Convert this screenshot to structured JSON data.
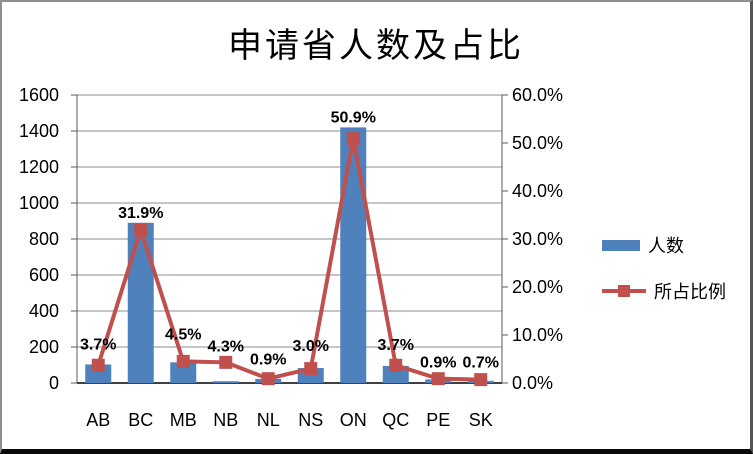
{
  "chart_data": {
    "type": "combo",
    "title": "申请省人数及占比",
    "categories": [
      "AB",
      "BC",
      "MB",
      "NB",
      "NL",
      "NS",
      "ON",
      "QC",
      "PE",
      "SK"
    ],
    "series": [
      {
        "name": "人数",
        "chart_type": "bar",
        "axis": "left",
        "color": "#4F81BD",
        "values": [
          103,
          890,
          115,
          10,
          23,
          83,
          1420,
          95,
          20,
          12
        ]
      },
      {
        "name": "所占比例",
        "chart_type": "line",
        "axis": "right",
        "color": "#C0504D",
        "values": [
          3.7,
          31.9,
          4.5,
          4.3,
          0.9,
          3.0,
          50.9,
          3.7,
          0.9,
          0.7
        ],
        "data_labels": [
          "3.7%",
          "31.9%",
          "4.5%",
          "4.3%",
          "0.9%",
          "3.0%",
          "50.9%",
          "3.7%",
          "0.9%",
          "0.7%"
        ]
      }
    ],
    "left_axis": {
      "min": 0,
      "max": 1600,
      "step": 200,
      "labels": [
        "0",
        "200",
        "400",
        "600",
        "800",
        "1000",
        "1200",
        "1400",
        "1600"
      ]
    },
    "right_axis": {
      "min": 0,
      "max": 60,
      "step": 10,
      "labels": [
        "0.0%",
        "10.0%",
        "20.0%",
        "30.0%",
        "40.0%",
        "50.0%",
        "60.0%"
      ]
    },
    "legend": {
      "position": "right",
      "entries": [
        "人数",
        "所占比例"
      ]
    },
    "grid": true,
    "background": "#FFFFFF"
  },
  "colors": {
    "bar": "#4F81BD",
    "line": "#C0504D",
    "gridline": "#8C8C8C",
    "axis": "#595959",
    "baseline": "#404040",
    "text": "#000000",
    "frame_border": "#808080"
  }
}
